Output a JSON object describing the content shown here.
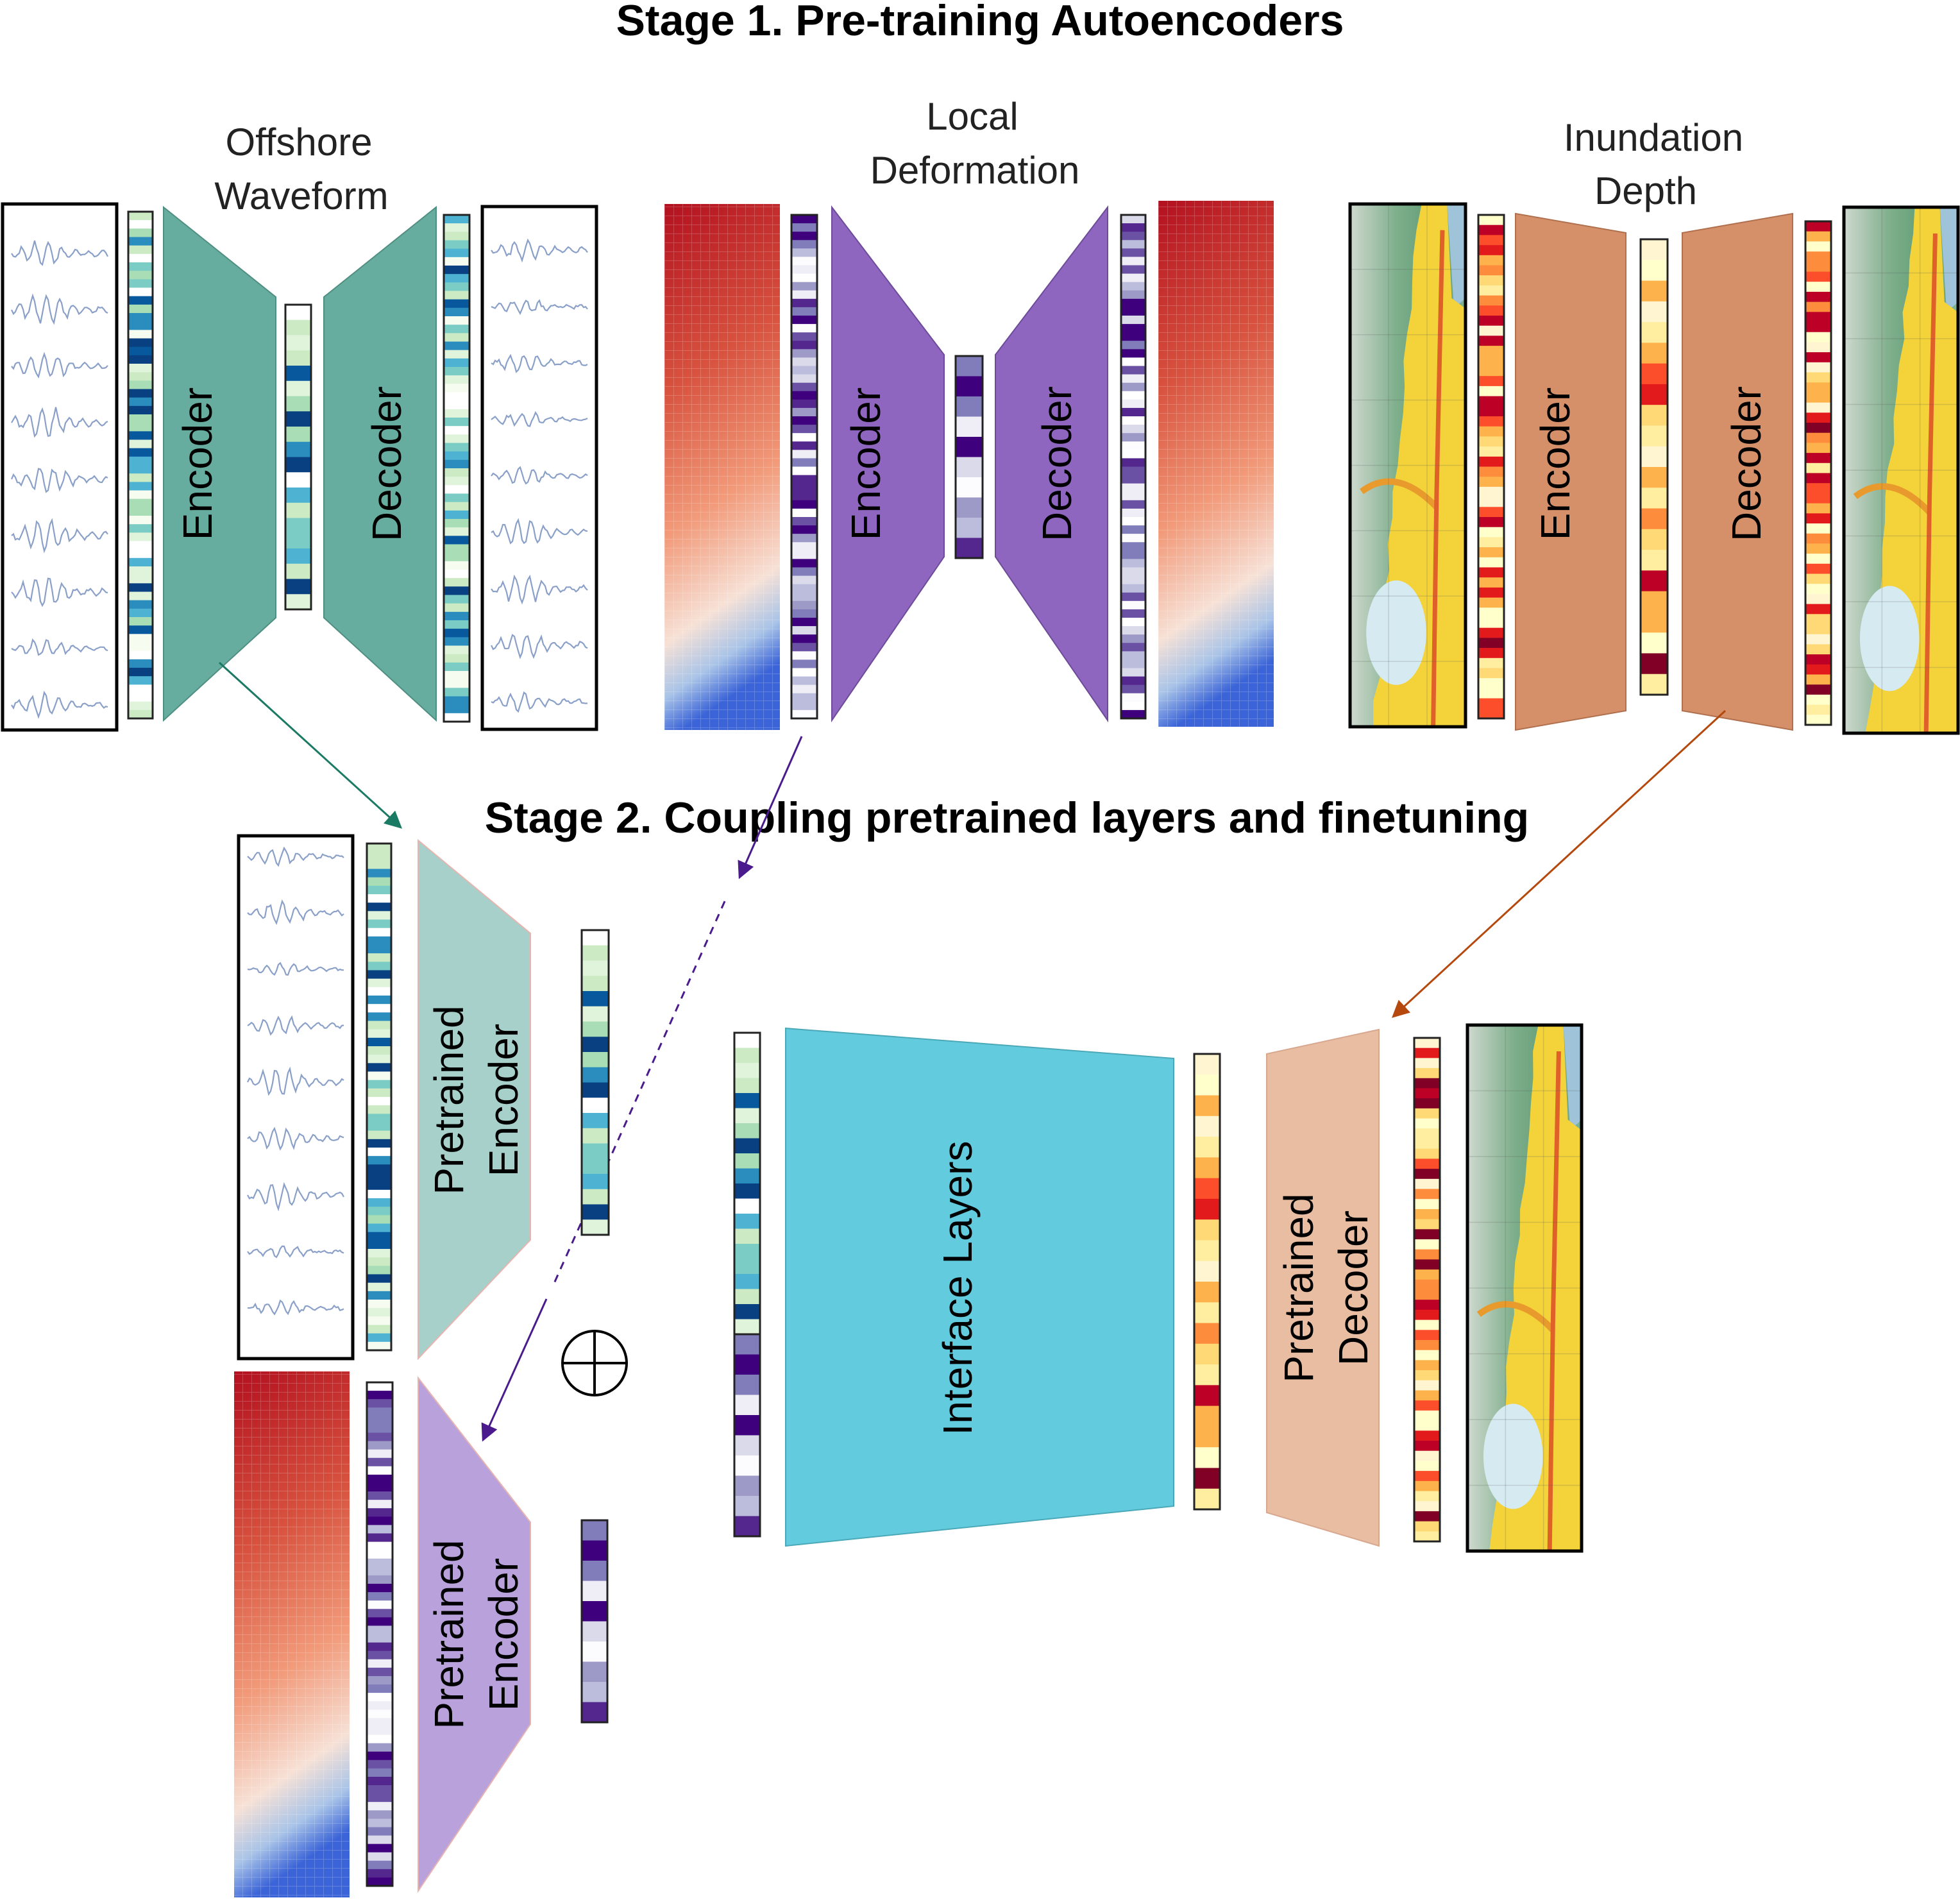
{
  "stage1": {
    "title": "Stage 1. Pre-training Autoencoders",
    "waveform": {
      "label_line1": "Offshore",
      "label_line2": "Waveform",
      "encoder": "Encoder",
      "decoder": "Decoder"
    },
    "deformation": {
      "label_line1": "Local",
      "label_line2": "Deformation",
      "encoder": "Encoder",
      "decoder": "Decoder"
    },
    "inundation": {
      "label_line1": "Inundation",
      "label_line2": "Depth",
      "encoder": "Encoder",
      "decoder": "Decoder"
    }
  },
  "stage2": {
    "title": "Stage 2. Coupling pretrained layers and finetuning",
    "wave_encoder_line1": "Pretrained",
    "wave_encoder_line2": "Encoder",
    "def_encoder_line1": "Pretrained",
    "def_encoder_line2": "Encoder",
    "interface": "Interface Layers",
    "decoder_line1": "Pretrained",
    "decoder_line2": "Decoder",
    "concat_symbol": "⊕"
  },
  "colors": {
    "teal_block": "#67ad9f",
    "teal_light": "#a6d0c9",
    "purple_block": "#8f66bf",
    "purple_light": "#b9a2dc",
    "orange_block": "#d59069",
    "orange_light": "#e8bda2",
    "cyan_block": "#62cbde",
    "arrow_teal": "#1a7a64",
    "arrow_purple": "#4b1a8c",
    "arrow_orange": "#b5480c"
  }
}
